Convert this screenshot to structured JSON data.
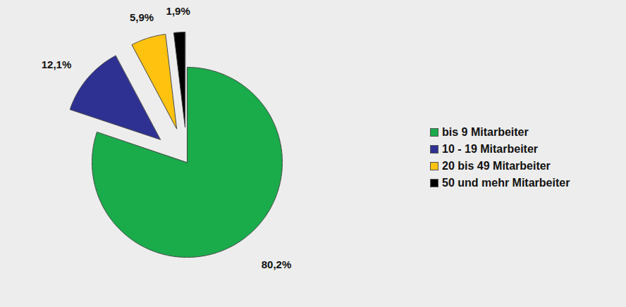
{
  "chart_data": {
    "type": "pie",
    "categories": [
      "bis 9 Mitarbeiter",
      "10 - 19 Mitarbeiter",
      "20 bis 49 Mitarbeiter",
      "50 und mehr Mitarbeiter"
    ],
    "values": [
      80.2,
      12.1,
      5.9,
      1.9
    ],
    "value_labels": [
      "80,2%",
      "12,1%",
      "5,9%",
      "1,9%"
    ],
    "colors": [
      "#1aab4b",
      "#2e3192",
      "#ffc20e",
      "#000000"
    ],
    "data_labels": true,
    "legend": "right"
  }
}
